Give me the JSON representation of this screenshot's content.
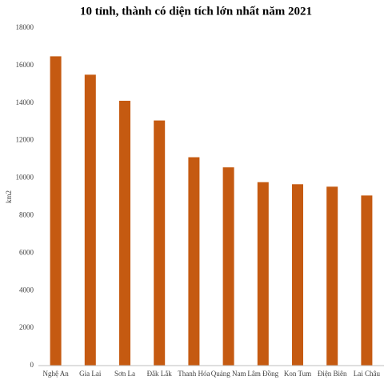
{
  "chart_data": {
    "type": "bar",
    "title": "10 tỉnh, thành có diện tích lớn nhất năm 2021",
    "y_label": "km2",
    "categories": [
      "Nghệ An",
      "Gia Lai",
      "Sơn La",
      "Đắk Lắk",
      "Thanh Hóa",
      "Quảng Nam",
      "Lâm Đồng",
      "Kon Tum",
      "Điện Biên",
      "Lai Châu"
    ],
    "values": [
      16490,
      15510,
      14120,
      13070,
      11110,
      10570,
      9780,
      9670,
      9540,
      9070
    ],
    "color": "#c55a11",
    "ylim": [
      0,
      18000
    ],
    "yticks": [
      0,
      2000,
      4000,
      6000,
      8000,
      10000,
      12000,
      14000,
      16000,
      18000
    ],
    "grid": false
  }
}
